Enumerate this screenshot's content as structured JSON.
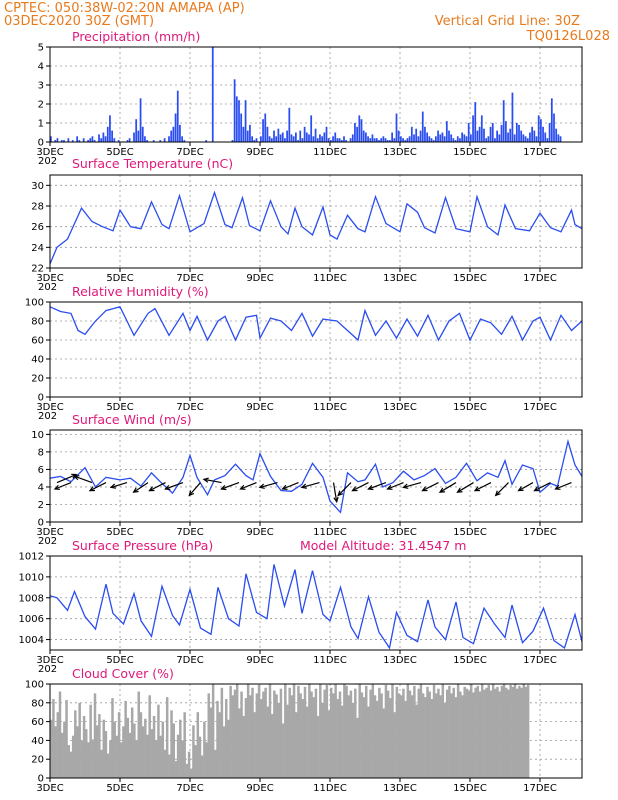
{
  "header": {
    "line1": "CPTEC:   050:38W-02:20N   AMAPA (AP)",
    "line2": "03DEC2020 30Z (GMT)",
    "right1": "Vertical Grid Line: 30Z",
    "right2": "TQ0126L028"
  },
  "colors": {
    "header": "#e87a1e",
    "title": "#e0187a",
    "series": "#2a4df0",
    "cloud": "#a8a8a8",
    "wind_arrow": "#000000"
  },
  "x_axis": {
    "labels": [
      "3DEC",
      "5DEC",
      "7DEC",
      "9DEC",
      "11DEC",
      "13DEC",
      "15DEC",
      "17DEC"
    ],
    "label_days": [
      3,
      5,
      7,
      9,
      11,
      13,
      15,
      17
    ],
    "range_days": [
      3,
      18.2
    ],
    "partial_label": "202"
  },
  "chart_data": [
    {
      "id": "precip",
      "type": "bar",
      "title": "Precipitation (mm/h)",
      "ylim": [
        0,
        5
      ],
      "yticks": [
        0,
        1,
        2,
        3,
        4,
        5
      ],
      "grid": true,
      "x_start_day": 3,
      "step_days": 0.0625,
      "values": [
        0.3,
        0,
        0.1,
        0.2,
        0,
        0.1,
        0.1,
        0,
        0.2,
        0,
        0.1,
        0,
        0.3,
        0.1,
        0,
        0.2,
        0,
        0.1,
        0.2,
        0.3,
        0.1,
        0,
        0.4,
        0.2,
        0.5,
        0.3,
        0.8,
        1.4,
        0.6,
        0.2,
        0,
        0.1,
        0,
        0,
        0,
        0.1,
        0.2,
        0,
        0.5,
        1.2,
        0.6,
        2.3,
        0.8,
        0.3,
        0.1,
        0,
        0,
        0.1,
        0,
        0,
        0.1,
        0,
        0.2,
        0,
        0.3,
        0.6,
        0.8,
        1.5,
        2.7,
        0.9,
        0.3,
        0.1,
        0,
        0,
        0,
        0,
        0,
        0,
        0,
        0,
        0,
        0.1,
        0,
        0,
        5,
        0,
        0,
        0,
        0,
        0,
        0,
        0,
        0,
        0.1,
        3.3,
        2.4,
        2.2,
        1.5,
        0.8,
        2.2,
        0.6,
        0.9,
        0.3,
        0.1,
        0.2,
        0,
        0.3,
        1.2,
        1.5,
        0.8,
        0.3,
        0.2,
        0.6,
        0.3,
        0.7,
        0.4,
        0.5,
        0.2,
        0.6,
        1.8,
        0.4,
        0.3,
        0.5,
        0.1,
        0.6,
        0.2,
        0.8,
        0.5,
        0.4,
        1.4,
        0.3,
        0.7,
        0.2,
        0.4,
        0.3,
        0.5,
        0.8,
        0.2,
        0.1,
        0.3,
        0.5,
        0.2,
        0.2,
        0.1,
        0.3,
        0.1,
        0,
        0.2,
        0.4,
        1.0,
        0.8,
        1.4,
        1.2,
        0.6,
        0.5,
        0.3,
        0.2,
        0.4,
        0.2,
        0.2,
        0.1,
        0.2,
        0.3,
        0.2,
        0.1,
        0.1,
        0.5,
        0.2,
        1.5,
        0.6,
        0.3,
        0.2,
        0.1,
        0.2,
        0.3,
        0.8,
        0.4,
        0.7,
        0.3,
        0.6,
        1.6,
        0.8,
        0.5,
        0.3,
        0.2,
        0.1,
        0.3,
        0.6,
        0.4,
        0.5,
        0.3,
        1.1,
        0.6,
        0.4,
        0.2,
        0.1,
        0.3,
        0.2,
        0.5,
        0.4,
        0.3,
        1.0,
        0.4,
        1.4,
        2.1,
        0.6,
        0.8,
        1.4,
        0.7,
        0.2,
        0.3,
        0.8,
        1.0,
        0.2,
        0.6,
        0.4,
        0.9,
        2.2,
        1.1,
        0.5,
        0.7,
        2.6,
        0.4,
        1.0,
        0.9,
        0.6,
        0.4,
        0.3,
        0.2,
        0.5,
        0.8,
        0.6,
        0.3,
        1.4,
        1.2,
        0.8,
        0.5,
        0.2,
        1.0,
        2.3,
        1.5,
        0.7,
        0.4,
        0.3
      ]
    },
    {
      "id": "temp",
      "type": "line",
      "title": "Surface Temperature (nC)",
      "ylim": [
        22,
        31
      ],
      "yticks": [
        22,
        24,
        26,
        28,
        30
      ],
      "grid": true,
      "x": [
        3.0,
        3.2,
        3.5,
        3.9,
        4.2,
        4.5,
        4.8,
        5.0,
        5.3,
        5.6,
        5.9,
        6.2,
        6.4,
        6.7,
        7.0,
        7.4,
        7.7,
        8.0,
        8.2,
        8.5,
        8.7,
        9.0,
        9.3,
        9.6,
        9.8,
        10.0,
        10.2,
        10.5,
        10.8,
        11.0,
        11.2,
        11.5,
        11.8,
        12.0,
        12.3,
        12.6,
        13.0,
        13.2,
        13.5,
        13.7,
        14.0,
        14.3,
        14.6,
        15.0,
        15.2,
        15.5,
        15.8,
        16.0,
        16.3,
        16.7,
        17.0,
        17.3,
        17.6,
        17.9,
        18.0,
        18.2
      ],
      "values": [
        22.4,
        24.0,
        24.8,
        27.8,
        26.5,
        26.0,
        25.6,
        27.6,
        26.0,
        25.8,
        28.4,
        26.2,
        25.8,
        29.0,
        25.5,
        26.3,
        29.3,
        26.2,
        25.9,
        28.8,
        26.1,
        25.6,
        28.5,
        26.0,
        25.3,
        27.8,
        26.0,
        25.2,
        27.9,
        25.2,
        24.8,
        27.1,
        25.8,
        25.5,
        28.9,
        26.3,
        25.5,
        28.2,
        27.4,
        25.9,
        25.4,
        28.8,
        25.8,
        25.5,
        28.9,
        26.0,
        25.2,
        28.1,
        25.8,
        25.6,
        27.3,
        25.9,
        25.5,
        27.6,
        26.2,
        25.8
      ]
    },
    {
      "id": "rh",
      "type": "line",
      "title": "Relative Humidity (%)",
      "ylim": [
        0,
        100
      ],
      "yticks": [
        0,
        20,
        40,
        60,
        80,
        100
      ],
      "grid": true,
      "x": [
        3.0,
        3.3,
        3.6,
        3.8,
        4.0,
        4.3,
        4.6,
        5.0,
        5.4,
        5.8,
        6.0,
        6.4,
        6.8,
        7.0,
        7.2,
        7.5,
        7.8,
        8.0,
        8.3,
        8.6,
        8.9,
        9.0,
        9.3,
        9.6,
        9.9,
        10.2,
        10.5,
        10.8,
        11.2,
        11.5,
        11.8,
        12.0,
        12.3,
        12.6,
        12.9,
        13.2,
        13.5,
        13.8,
        14.1,
        14.4,
        14.7,
        15.0,
        15.3,
        15.6,
        15.9,
        16.2,
        16.5,
        16.8,
        17.0,
        17.3,
        17.6,
        17.9,
        18.2
      ],
      "values": [
        95,
        90,
        88,
        70,
        66,
        80,
        91,
        95,
        65,
        88,
        93,
        65,
        88,
        70,
        85,
        60,
        80,
        85,
        60,
        84,
        86,
        62,
        83,
        80,
        70,
        88,
        64,
        82,
        80,
        70,
        60,
        91,
        65,
        80,
        62,
        82,
        64,
        86,
        60,
        80,
        88,
        60,
        82,
        78,
        66,
        85,
        60,
        80,
        84,
        60,
        86,
        70,
        80
      ]
    },
    {
      "id": "wind",
      "type": "line",
      "title": "Surface Wind (m/s)",
      "ylim": [
        0,
        10.5
      ],
      "yticks": [
        0,
        2,
        4,
        6,
        8,
        10
      ],
      "grid": true,
      "x": [
        3.0,
        3.3,
        3.6,
        4.0,
        4.3,
        4.6,
        5.0,
        5.3,
        5.6,
        5.9,
        6.2,
        6.5,
        6.8,
        7.0,
        7.2,
        7.5,
        7.7,
        8.0,
        8.3,
        8.6,
        8.8,
        9.0,
        9.3,
        9.6,
        9.9,
        10.2,
        10.5,
        10.8,
        11.0,
        11.3,
        11.5,
        11.8,
        12.0,
        12.3,
        12.5,
        12.8,
        13.1,
        13.4,
        13.7,
        14.0,
        14.3,
        14.6,
        14.9,
        15.2,
        15.5,
        15.8,
        16.0,
        16.2,
        16.5,
        16.8,
        17.0,
        17.3,
        17.5,
        17.8,
        18.0,
        18.2
      ],
      "values": [
        5.0,
        5.2,
        4.6,
        6.2,
        4.0,
        5.1,
        4.8,
        5.0,
        4.1,
        5.6,
        4.4,
        3.3,
        5.1,
        7.6,
        5.1,
        3.1,
        4.8,
        5.3,
        6.6,
        5.3,
        4.8,
        7.8,
        5.2,
        3.6,
        3.5,
        4.3,
        6.7,
        5.1,
        2.4,
        1.1,
        5.6,
        4.6,
        4.8,
        6.6,
        4.0,
        4.5,
        5.8,
        4.8,
        5.3,
        6.1,
        4.4,
        5.1,
        6.7,
        4.7,
        5.6,
        5.1,
        7.0,
        4.3,
        6.5,
        6.1,
        3.4,
        4.4,
        4.1,
        9.2,
        6.5,
        5.2
      ],
      "arrows": [
        {
          "day": 3.2,
          "dx": 1.2,
          "dy": 0.5
        },
        {
          "day": 3.6,
          "dx": -1.0,
          "dy": -0.4
        },
        {
          "day": 4.2,
          "dx": -1.1,
          "dy": 0.4
        },
        {
          "day": 4.6,
          "dx": -1.0,
          "dy": -0.5
        },
        {
          "day": 5.2,
          "dx": -1.0,
          "dy": -0.3
        },
        {
          "day": 5.8,
          "dx": -0.9,
          "dy": -0.6
        },
        {
          "day": 6.3,
          "dx": -1.0,
          "dy": -0.5
        },
        {
          "day": 6.8,
          "dx": -1.1,
          "dy": -0.4
        },
        {
          "day": 7.3,
          "dx": -0.7,
          "dy": -0.8
        },
        {
          "day": 7.9,
          "dx": -1.1,
          "dy": 0.2
        },
        {
          "day": 8.4,
          "dx": -1.1,
          "dy": -0.4
        },
        {
          "day": 8.9,
          "dx": -1.0,
          "dy": -0.4
        },
        {
          "day": 9.5,
          "dx": -1.1,
          "dy": -0.3
        },
        {
          "day": 10.1,
          "dx": -1.0,
          "dy": -0.4
        },
        {
          "day": 10.7,
          "dx": -1.1,
          "dy": -0.3
        },
        {
          "day": 11.1,
          "dx": 0.2,
          "dy": -1.2
        },
        {
          "day": 11.6,
          "dx": -0.8,
          "dy": -0.8
        },
        {
          "day": 12.1,
          "dx": -1.0,
          "dy": -0.5
        },
        {
          "day": 12.6,
          "dx": -1.1,
          "dy": -0.4
        },
        {
          "day": 13.1,
          "dx": -1.0,
          "dy": -0.4
        },
        {
          "day": 13.6,
          "dx": -1.1,
          "dy": -0.3
        },
        {
          "day": 14.1,
          "dx": -1.0,
          "dy": -0.5
        },
        {
          "day": 14.6,
          "dx": -1.0,
          "dy": -0.6
        },
        {
          "day": 15.1,
          "dx": -1.0,
          "dy": -0.6
        },
        {
          "day": 15.6,
          "dx": -1.0,
          "dy": -0.5
        },
        {
          "day": 16.1,
          "dx": -0.8,
          "dy": -0.8
        },
        {
          "day": 16.8,
          "dx": -0.9,
          "dy": -0.5
        },
        {
          "day": 17.3,
          "dx": -1.0,
          "dy": -0.5
        },
        {
          "day": 17.9,
          "dx": -1.0,
          "dy": -0.4
        }
      ]
    },
    {
      "id": "pressure",
      "type": "line",
      "title": "Surface Pressure (hPa)",
      "annotation": "Model Altitude: 31.4547 m",
      "ylim": [
        1003,
        1012
      ],
      "yticks": [
        1004,
        1006,
        1008,
        1010,
        1012
      ],
      "grid": true,
      "x": [
        3.0,
        3.2,
        3.5,
        3.7,
        4.0,
        4.3,
        4.6,
        4.8,
        5.1,
        5.4,
        5.6,
        5.9,
        6.2,
        6.5,
        6.7,
        7.0,
        7.3,
        7.6,
        7.8,
        8.1,
        8.4,
        8.6,
        8.9,
        9.2,
        9.4,
        9.7,
        10.0,
        10.2,
        10.5,
        10.8,
        11.0,
        11.3,
        11.6,
        11.8,
        12.1,
        12.4,
        12.7,
        12.9,
        13.2,
        13.5,
        13.8,
        14.0,
        14.3,
        14.6,
        14.8,
        15.1,
        15.4,
        15.7,
        16.0,
        16.2,
        16.5,
        16.8,
        17.1,
        17.4,
        17.7,
        18.0,
        18.2
      ],
      "values": [
        1008.2,
        1008.0,
        1006.8,
        1008.6,
        1006.2,
        1005.0,
        1009.3,
        1006.5,
        1005.5,
        1008.4,
        1005.8,
        1004.3,
        1009.1,
        1006.3,
        1005.4,
        1008.8,
        1005.1,
        1004.5,
        1009.0,
        1006.0,
        1005.3,
        1010.3,
        1006.6,
        1006.0,
        1011.2,
        1007.2,
        1010.7,
        1006.5,
        1010.6,
        1006.4,
        1005.8,
        1009.0,
        1005.2,
        1004.1,
        1008.1,
        1004.7,
        1003.2,
        1006.6,
        1004.4,
        1003.8,
        1007.8,
        1005.2,
        1004.0,
        1007.6,
        1004.2,
        1003.6,
        1007.0,
        1005.5,
        1004.2,
        1007.3,
        1003.7,
        1004.8,
        1007.0,
        1003.9,
        1003.2,
        1006.4,
        1003.8
      ]
    },
    {
      "id": "cloud",
      "type": "bar",
      "title": "Cloud Cover (%)",
      "ylim": [
        0,
        100
      ],
      "yticks": [
        0,
        20,
        40,
        60,
        80,
        100
      ],
      "grid": true,
      "x_start_day": 3,
      "step_days": 0.0625,
      "values": [
        62,
        84,
        55,
        70,
        92,
        48,
        60,
        83,
        35,
        28,
        45,
        72,
        55,
        80,
        40,
        66,
        52,
        38,
        78,
        41,
        90,
        56,
        68,
        30,
        62,
        50,
        26,
        40,
        85,
        60,
        45,
        70,
        38,
        55,
        82,
        64,
        48,
        75,
        58,
        40,
        92,
        70,
        55,
        63,
        46,
        88,
        52,
        66,
        40,
        78,
        45,
        60,
        30,
        86,
        25,
        72,
        58,
        18,
        46,
        62,
        40,
        70,
        15,
        28,
        10,
        56,
        35,
        70,
        44,
        24,
        60,
        38,
        90,
        75,
        100,
        30,
        82,
        70,
        96,
        55,
        84,
        62,
        98,
        88,
        94,
        100,
        74,
        92,
        66,
        85,
        100,
        88,
        96,
        70,
        90,
        99,
        84,
        92,
        96,
        76,
        100,
        68,
        93,
        89,
        80,
        95,
        58,
        100,
        78,
        96,
        88,
        100,
        70,
        98,
        90,
        84,
        97,
        76,
        100,
        92,
        86,
        95,
        66,
        100,
        80,
        94,
        99,
        72,
        96,
        90,
        100,
        84,
        92,
        77,
        100,
        98,
        88,
        93,
        80,
        95,
        64,
        100,
        91,
        86,
        98,
        76,
        94,
        100,
        88,
        82,
        96,
        90,
        74,
        99,
        93,
        85,
        100,
        70,
        97,
        90,
        88,
        95,
        82,
        100,
        93,
        88,
        98,
        78,
        95,
        100,
        90,
        86,
        97,
        92,
        84,
        99,
        90,
        95,
        88,
        100,
        80,
        94,
        98,
        90,
        96,
        86,
        100,
        92,
        88,
        97,
        95,
        93,
        100,
        91,
        96,
        98,
        92,
        100,
        94,
        96,
        99,
        93,
        100,
        95,
        97,
        92,
        98,
        100,
        96,
        94,
        99,
        97,
        100,
        95,
        98,
        96,
        100,
        97,
        99
      ]
    }
  ]
}
